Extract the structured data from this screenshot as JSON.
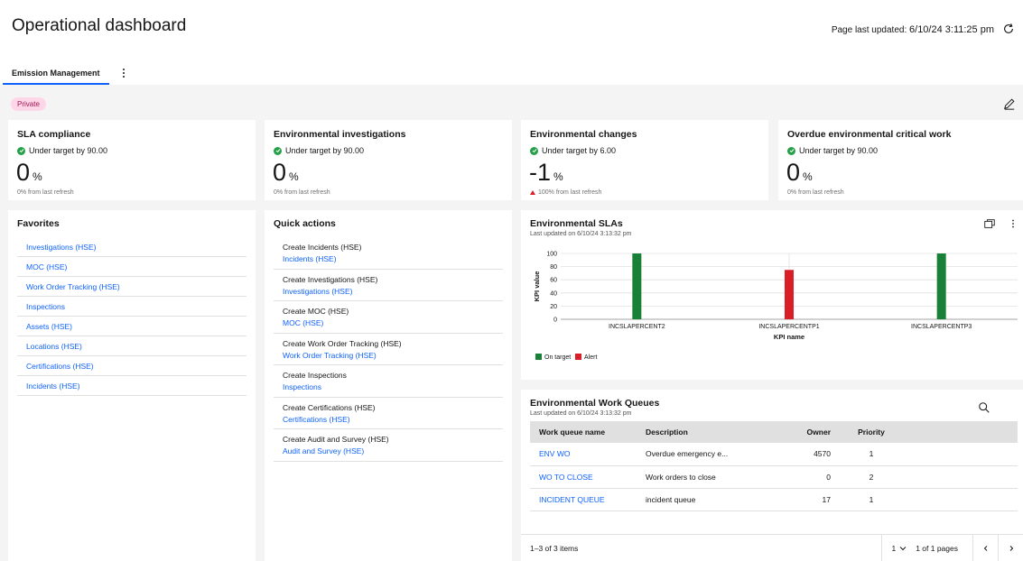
{
  "header": {
    "title": "Operational dashboard",
    "updated_label": "Page last updated:",
    "updated_value": "6/10/24 3:11:25 pm"
  },
  "tabs": [
    {
      "label": "Emission Management"
    }
  ],
  "tag": "Private",
  "kpis": [
    {
      "title": "SLA compliance",
      "status": "Under target by 90.00",
      "value": "0",
      "unit": "%",
      "foot": "0% from last refresh"
    },
    {
      "title": "Environmental investigations",
      "status": "Under target by 90.00",
      "value": "0",
      "unit": "%",
      "foot": "0% from last refresh"
    },
    {
      "title": "Environmental changes",
      "status": "Under target by 6.00",
      "value": "-1",
      "unit": "%",
      "foot": "100% from last refresh"
    },
    {
      "title": "Overdue environmental critical work",
      "status": "Under target by 90.00",
      "value": "0",
      "unit": "%",
      "foot": "0% from last refresh"
    }
  ],
  "favorites": {
    "title": "Favorites",
    "items": [
      "Investigations (HSE)",
      "MOC (HSE)",
      "Work Order Tracking (HSE)",
      "Inspections",
      "Assets (HSE)",
      "Locations (HSE)",
      "Certifications (HSE)",
      "Incidents (HSE)"
    ]
  },
  "quick_actions": {
    "title": "Quick actions",
    "items": [
      {
        "create": "Create Incidents (HSE)",
        "link": "Incidents (HSE)"
      },
      {
        "create": "Create Investigations (HSE)",
        "link": "Investigations (HSE)"
      },
      {
        "create": "Create MOC (HSE)",
        "link": "MOC (HSE)"
      },
      {
        "create": "Create Work Order Tracking (HSE)",
        "link": "Work Order Tracking (HSE)"
      },
      {
        "create": "Create Inspections",
        "link": "Inspections"
      },
      {
        "create": "Create Certifications (HSE)",
        "link": "Certifications (HSE)"
      },
      {
        "create": "Create Audit and Survey (HSE)",
        "link": "Audit and Survey (HSE)"
      }
    ]
  },
  "slas": {
    "title": "Environmental SLAs",
    "updated": "Last updated on 6/10/24 3:13:32 pm"
  },
  "chart_data": {
    "type": "bar",
    "categories": [
      "INCSLAPERCENT2",
      "INCSLAPERCENTP1",
      "INCSLAPERCENTP3"
    ],
    "values": [
      100,
      75,
      100
    ],
    "statuses": [
      "On target",
      "Alert",
      "On target"
    ],
    "xlabel": "KPI name",
    "ylabel": "KPI value",
    "ylim": [
      0,
      100
    ],
    "yticks": [
      0,
      20,
      40,
      60,
      80,
      100
    ],
    "grid": true,
    "legend": [
      {
        "name": "On target",
        "color": "#198038"
      },
      {
        "name": "Alert",
        "color": "#da1e28"
      }
    ],
    "legend_position": "bottom-left"
  },
  "work_queues": {
    "title": "Environmental Work Queues",
    "updated": "Last updated on 6/10/24 3:13:32 pm",
    "columns": [
      "Work queue name",
      "Description",
      "Owner",
      "Priority"
    ],
    "rows": [
      {
        "name": "ENV WO",
        "description": "Overdue emergency e...",
        "owner": "4570",
        "priority": "1"
      },
      {
        "name": "WO TO CLOSE",
        "description": "Work orders to close",
        "owner": "0",
        "priority": "2"
      },
      {
        "name": "INCIDENT QUEUE",
        "description": "incident queue",
        "owner": "17",
        "priority": "1"
      }
    ],
    "pagination": {
      "items": "1–3 of 3 items",
      "page": "1",
      "pages": "1 of 1 pages"
    }
  },
  "colors": {
    "accent": "#0f62fe",
    "success": "#24a148",
    "danger": "#da1e28",
    "tag_bg": "#ffd6e8",
    "tag_fg": "#9f1853"
  }
}
